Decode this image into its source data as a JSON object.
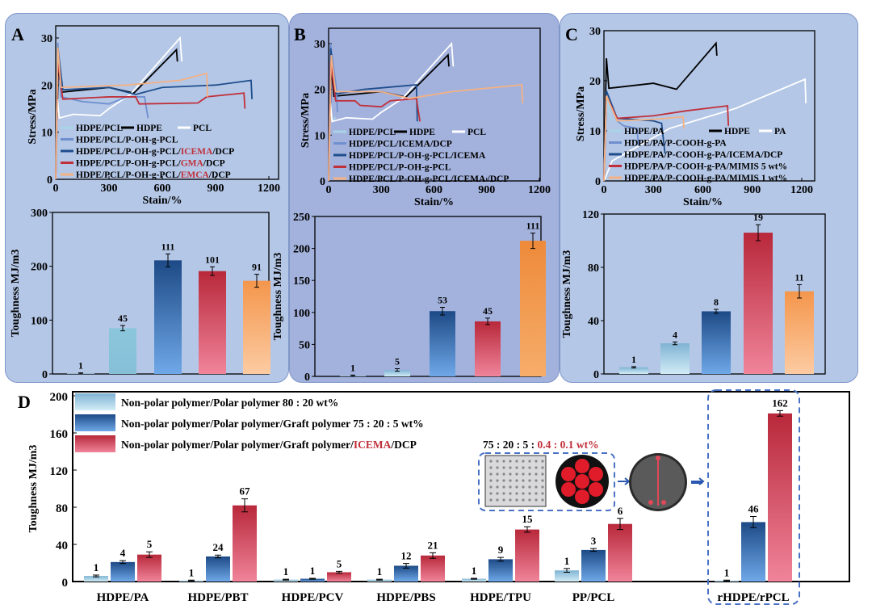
{
  "panel_letters": {
    "A": "A",
    "B": "B",
    "C": "C",
    "D": "D"
  },
  "chart_data": [
    {
      "id": "A-stress",
      "type": "line",
      "xlabel": "Stain/%",
      "ylabel": "Stress/MPa",
      "xlim": [
        0,
        1200
      ],
      "ylim": [
        0,
        30
      ],
      "xticks": [
        0,
        300,
        600,
        900,
        1200
      ],
      "yticks": [
        0,
        10,
        20,
        30
      ],
      "series": [
        {
          "name": "HDPE/PCL",
          "color": "#a9d4e6",
          "points": [
            [
              0,
              0
            ],
            [
              10,
              27
            ],
            [
              30,
              18
            ],
            [
              60,
              18
            ],
            [
              80,
              17
            ]
          ]
        },
        {
          "name": "HDPE",
          "color": "#000000",
          "points": [
            [
              0,
              0
            ],
            [
              15,
              25
            ],
            [
              30,
              18.5
            ],
            [
              300,
              19.5
            ],
            [
              440,
              18.3
            ],
            [
              680,
              27.5
            ],
            [
              685,
              25
            ]
          ]
        },
        {
          "name": "PCL",
          "color": "#ffffff",
          "points": [
            [
              0,
              0
            ],
            [
              10,
              17
            ],
            [
              20,
              13
            ],
            [
              100,
              13.8
            ],
            [
              250,
              13.5
            ],
            [
              300,
              15
            ],
            [
              420,
              18
            ],
            [
              700,
              30
            ],
            [
              710,
              25
            ]
          ]
        },
        {
          "name": "HDPE/PCL/P-OH-g-PCL",
          "color": "#6f8fcf",
          "points": [
            [
              0,
              0
            ],
            [
              12,
              29
            ],
            [
              30,
              17.5
            ],
            [
              150,
              16.5
            ],
            [
              300,
              16
            ],
            [
              400,
              17.5
            ],
            [
              500,
              17.5
            ],
            [
              520,
              13
            ]
          ]
        },
        {
          "name": "HDPE/PCL/P-OH-g-PCL/ICEMA/DCP",
          "highlight": "ICEMA",
          "color": "#1f4e8c",
          "points": [
            [
              0,
              0
            ],
            [
              12,
              28
            ],
            [
              40,
              19
            ],
            [
              300,
              19.5
            ],
            [
              450,
              18
            ],
            [
              600,
              19.5
            ],
            [
              900,
              20
            ],
            [
              1100,
              21
            ],
            [
              1105,
              17
            ]
          ]
        },
        {
          "name": "HDPE/PCL/P-OH-g-PCL/GMA/DCP",
          "highlight": "GMA",
          "color": "#c0303a",
          "points": [
            [
              0,
              0
            ],
            [
              12,
              25
            ],
            [
              40,
              17
            ],
            [
              300,
              17.5
            ],
            [
              450,
              17.5
            ],
            [
              470,
              16
            ],
            [
              800,
              16.2
            ],
            [
              850,
              17.5
            ],
            [
              1060,
              18.3
            ],
            [
              1065,
              15
            ]
          ]
        },
        {
          "name": "HDPE/PCL/P-OH-g-PCL/EMCA/DCP",
          "highlight": "EMCA",
          "color": "#f4b183",
          "points": [
            [
              0,
              0
            ],
            [
              12,
              28
            ],
            [
              30,
              19.5
            ],
            [
              400,
              20
            ],
            [
              700,
              21
            ],
            [
              850,
              22.5
            ],
            [
              855,
              17.5
            ]
          ]
        }
      ]
    },
    {
      "id": "A-toughness",
      "type": "bar",
      "ylabel": "Toughness MJ/m3",
      "ylim": [
        0,
        300
      ],
      "yticks": [
        0,
        100,
        200,
        300
      ],
      "values": [
        1,
        85,
        211,
        191,
        173
      ],
      "errors": [
        1,
        5,
        12,
        8,
        12
      ],
      "labels": [
        "1",
        "45",
        "111",
        "101",
        "91"
      ]
    },
    {
      "id": "B-stress",
      "type": "line",
      "xlabel": "Stain/%",
      "ylabel": "Stress/MPa",
      "xlim": [
        0,
        1200
      ],
      "ylim": [
        0,
        30
      ],
      "xticks": [
        0,
        300,
        600,
        900,
        1200
      ],
      "yticks": [
        0,
        10,
        20,
        30
      ],
      "series": [
        {
          "name": "HDPE/PCL",
          "color": "#a9d4e6",
          "points": [
            [
              0,
              0
            ],
            [
              10,
              17
            ],
            [
              20,
              13
            ],
            [
              40,
              14
            ]
          ]
        },
        {
          "name": "HDPE",
          "color": "#000000",
          "points": [
            [
              0,
              0
            ],
            [
              15,
              25
            ],
            [
              30,
              18.5
            ],
            [
              300,
              19.5
            ],
            [
              440,
              18.3
            ],
            [
              680,
              27.5
            ],
            [
              685,
              25
            ]
          ]
        },
        {
          "name": "PCL",
          "color": "#ffffff",
          "points": [
            [
              0,
              0
            ],
            [
              10,
              17
            ],
            [
              20,
              13
            ],
            [
              100,
              13.8
            ],
            [
              250,
              13.5
            ],
            [
              300,
              15
            ],
            [
              420,
              18
            ],
            [
              700,
              30
            ],
            [
              710,
              25
            ]
          ]
        },
        {
          "name": "HDPE/PCL/ICEMA/DCP",
          "color": "#6f8fcf",
          "points": [
            [
              0,
              0
            ],
            [
              10,
              30
            ],
            [
              45,
              20
            ],
            [
              50,
              15
            ]
          ]
        },
        {
          "name": "HDPE/PCL/P-OH-g-PCL/ICEMA",
          "color": "#1f4e8c",
          "points": [
            [
              0,
              0
            ],
            [
              12,
              29
            ],
            [
              40,
              19
            ],
            [
              200,
              20
            ],
            [
              500,
              21
            ],
            [
              505,
              13
            ]
          ]
        },
        {
          "name": "HDPE/PCL/P-OH-g-PCL",
          "color": "#c0303a",
          "points": [
            [
              0,
              0
            ],
            [
              12,
              26
            ],
            [
              40,
              17.5
            ],
            [
              150,
              17.5
            ],
            [
              180,
              16.5
            ],
            [
              300,
              16.2
            ],
            [
              350,
              17.5
            ],
            [
              500,
              18
            ],
            [
              520,
              13
            ]
          ]
        },
        {
          "name": "HDPE/PCL/P-OH-g-PCL/ICEMA /DCP",
          "color": "#f4b183",
          "points": [
            [
              0,
              0
            ],
            [
              15,
              27.5
            ],
            [
              40,
              19.5
            ],
            [
              300,
              19.5
            ],
            [
              460,
              18
            ],
            [
              700,
              19.5
            ],
            [
              1100,
              21
            ],
            [
              1105,
              17
            ]
          ]
        }
      ]
    },
    {
      "id": "B-toughness",
      "type": "bar",
      "ylabel": "Toughness MJ/m3",
      "ylim": [
        0,
        250
      ],
      "yticks": [
        0,
        50,
        100,
        150,
        200,
        250
      ],
      "values": [
        1,
        10,
        102,
        86,
        212
      ],
      "errors": [
        1,
        2,
        6,
        5,
        12
      ],
      "labels": [
        "1",
        "5",
        "53",
        "45",
        "111"
      ]
    },
    {
      "id": "C-stress",
      "type": "line",
      "xlabel": "Stain/%",
      "ylabel": "Stress/MPa",
      "xlim": [
        0,
        1200
      ],
      "ylim": [
        0,
        30
      ],
      "xticks": [
        0,
        300,
        600,
        900,
        1200
      ],
      "yticks": [
        0,
        10,
        20,
        30
      ],
      "series": [
        {
          "name": "HDPE/PA",
          "color": "#a9d4e6",
          "points": [
            [
              0,
              0
            ],
            [
              15,
              17
            ],
            [
              40,
              12.5
            ],
            [
              60,
              12
            ]
          ]
        },
        {
          "name": "HDPE",
          "color": "#000000",
          "points": [
            [
              0,
              0
            ],
            [
              15,
              24.5
            ],
            [
              30,
              18.5
            ],
            [
              300,
              19.5
            ],
            [
              440,
              18.3
            ],
            [
              680,
              27.5
            ],
            [
              685,
              25
            ]
          ]
        },
        {
          "name": "PA",
          "color": "#ffffff",
          "points": [
            [
              0,
              0
            ],
            [
              50,
              4
            ],
            [
              400,
              10.5
            ],
            [
              800,
              14.5
            ],
            [
              1220,
              20.3
            ],
            [
              1225,
              15.5
            ]
          ]
        },
        {
          "name": "HDPE/PA/P-COOH-g-PA",
          "color": "#6f8fcf",
          "points": [
            [
              0,
              0
            ],
            [
              15,
              17
            ],
            [
              80,
              12
            ],
            [
              120,
              11
            ],
            [
              200,
              10.5
            ],
            [
              210,
              7
            ]
          ]
        },
        {
          "name": "HDPE/PA/P-COOH-g-PA/ICEMA/DCP",
          "color": "#1f4e8c",
          "points": [
            [
              0,
              0
            ],
            [
              15,
              18
            ],
            [
              80,
              12.5
            ],
            [
              300,
              12
            ],
            [
              350,
              11.5
            ],
            [
              370,
              5.5
            ]
          ]
        },
        {
          "name": "HDPE/PA/P-COOH-g-PA/MIMIS  5 wt%",
          "color": "#c0303a",
          "points": [
            [
              0,
              0
            ],
            [
              15,
              17
            ],
            [
              80,
              12.5
            ],
            [
              300,
              13
            ],
            [
              500,
              14
            ],
            [
              750,
              15
            ],
            [
              755,
              11
            ]
          ]
        },
        {
          "name": "HDPE/PA/P-COOH-g-PA/MIMIS  1 wt%",
          "color": "#f4b183",
          "points": [
            [
              0,
              0
            ],
            [
              15,
              17
            ],
            [
              80,
              12
            ],
            [
              300,
              12.3
            ],
            [
              480,
              12.8
            ],
            [
              485,
              10.5
            ]
          ]
        }
      ]
    },
    {
      "id": "C-toughness",
      "type": "bar",
      "ylabel": "Toughness MJ/m3",
      "ylim": [
        0,
        120
      ],
      "yticks": [
        0,
        40,
        80,
        120
      ],
      "values": [
        5,
        23,
        47,
        106,
        62
      ],
      "errors": [
        0.5,
        1,
        1.5,
        6,
        5
      ],
      "labels": [
        "1",
        "4",
        "8",
        "19",
        "11"
      ]
    },
    {
      "id": "D-toughness",
      "type": "bar",
      "ylabel": "Toughness MJ/m3",
      "ylim": [
        0,
        200
      ],
      "yticks": [
        0,
        40,
        80,
        120,
        160,
        200
      ],
      "categories": [
        "HDPE/PA",
        "HDPE/PBT",
        "HDPE/PCV",
        "HDPE/PBS",
        "HDPE/TPU",
        "PP/PCL",
        "rHDPE/rPCL"
      ],
      "series": [
        {
          "name": "Non-polar polymer/Polar polymer 80 : 20 wt%",
          "values": [
            6,
            1,
            2,
            2,
            3,
            12,
            1
          ],
          "errors": [
            1,
            0.5,
            0.5,
            0.5,
            0.5,
            2,
            0.5
          ],
          "labels": [
            "1",
            "1",
            "1",
            "1",
            "1",
            "1",
            "1"
          ]
        },
        {
          "name": "Non-polar polymer/Polar polymer/Graft polymer 75 : 20 : 5 wt%",
          "values": [
            21,
            27,
            3,
            17,
            24,
            34,
            64
          ],
          "errors": [
            1.5,
            1.5,
            0.5,
            2.5,
            2,
            1.5,
            6
          ],
          "labels": [
            "4",
            "24",
            "1",
            "12",
            "9",
            "3",
            "46"
          ]
        },
        {
          "name": "Non-polar polymer/Polar polymer/Graft polymer/ICEMA/DCP",
          "highlight": "ICEMA",
          "values": [
            29,
            82,
            10,
            28,
            56,
            62,
            181
          ],
          "errors": [
            3,
            7,
            1,
            3,
            3,
            6,
            3
          ],
          "labels": [
            "5",
            "67",
            "5",
            "21",
            "15",
            "6",
            "162"
          ]
        }
      ],
      "annotation": {
        "ratio": "75 : 20 : 5 : ",
        "ratio_red": "0.4 : 0.1 wt%"
      }
    }
  ]
}
